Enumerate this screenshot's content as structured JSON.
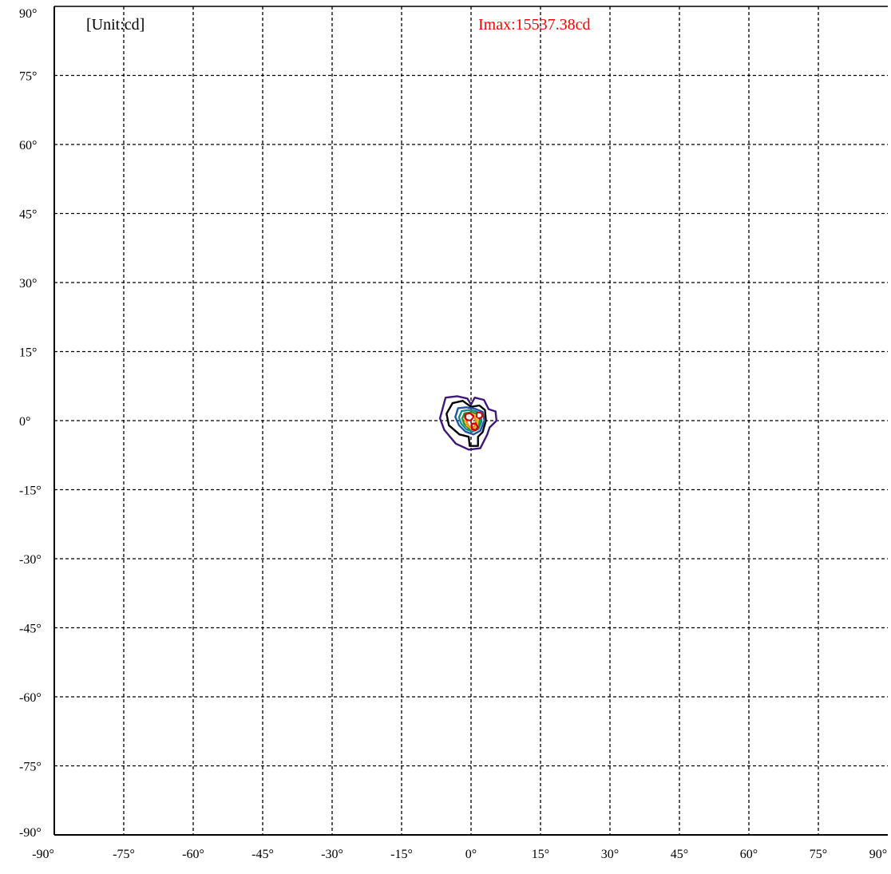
{
  "chart_data": {
    "type": "contour",
    "title": "",
    "unit_label": "[Unit:cd]",
    "imax_label": "Imax:15537.38cd",
    "imax_color": "#ff0000",
    "xlim": [
      -90,
      90
    ],
    "ylim": [
      -90,
      90
    ],
    "x_ticks": [
      -90,
      -75,
      -60,
      -45,
      -30,
      -15,
      0,
      15,
      30,
      45,
      60,
      75,
      90
    ],
    "y_ticks": [
      90,
      75,
      60,
      45,
      30,
      15,
      0,
      -15,
      -30,
      -45,
      -60,
      -75,
      -90
    ],
    "x_tick_labels": [
      "-90°",
      "-75°",
      "-60°",
      "-45°",
      "-30°",
      "-15°",
      "0°",
      "15°",
      "30°",
      "45°",
      "60°",
      "75°",
      "90°"
    ],
    "y_tick_labels": [
      "90°",
      "75°",
      "60°",
      "45°",
      "30°",
      "15°",
      "0°",
      "-15°",
      "-30°",
      "-45°",
      "-60°",
      "-75°",
      "-90°"
    ],
    "grid": true,
    "grid_style": "dashed",
    "contours": [
      {
        "color": "#3d1a78",
        "points": [
          [
            -5.5,
            5
          ],
          [
            -3,
            5.3
          ],
          [
            -0.8,
            4.8
          ],
          [
            0,
            3.5
          ],
          [
            0.8,
            5
          ],
          [
            2.8,
            4.5
          ],
          [
            3.8,
            2.5
          ],
          [
            5.3,
            2
          ],
          [
            5.5,
            0
          ],
          [
            4,
            -1.5
          ],
          [
            3.5,
            -3
          ],
          [
            2,
            -6
          ],
          [
            -0.5,
            -6.3
          ],
          [
            -3.3,
            -5
          ],
          [
            -5.8,
            -2
          ],
          [
            -6.7,
            0.5
          ]
        ]
      },
      {
        "color": "#000000",
        "points": [
          [
            -4,
            3.8
          ],
          [
            -1.8,
            4.3
          ],
          [
            0,
            3
          ],
          [
            1.8,
            3.3
          ],
          [
            3,
            2.3
          ],
          [
            3.2,
            0
          ],
          [
            2.5,
            -2.5
          ],
          [
            1.5,
            -3.5
          ],
          [
            1.5,
            -5.5
          ],
          [
            -0.3,
            -5.5
          ],
          [
            -0.5,
            -3.5
          ],
          [
            -2.5,
            -3
          ],
          [
            -4.8,
            -1
          ],
          [
            -5.3,
            1.5
          ]
        ]
      },
      {
        "color": "#1f55a6",
        "points": [
          [
            -2.8,
            2.7
          ],
          [
            -1,
            2.9
          ],
          [
            0.8,
            2.6
          ],
          [
            2.5,
            1.9
          ],
          [
            2.9,
            0
          ],
          [
            2,
            -2.2
          ],
          [
            0.5,
            -3
          ],
          [
            -1.2,
            -2.4
          ],
          [
            -2.6,
            -1
          ],
          [
            -3.4,
            0.8
          ]
        ]
      },
      {
        "color": "#1b8a8a",
        "points": [
          [
            -2,
            2.1
          ],
          [
            -0.5,
            2.3
          ],
          [
            0.9,
            2.1
          ],
          [
            2.1,
            1.3
          ],
          [
            2.3,
            -0.2
          ],
          [
            1.6,
            -1.8
          ],
          [
            0.3,
            -2.4
          ],
          [
            -1,
            -1.9
          ],
          [
            -2.1,
            -0.7
          ],
          [
            -2.6,
            0.7
          ]
        ]
      },
      {
        "color": "#2e8b2e",
        "points": [
          [
            -1.4,
            1.6
          ],
          [
            0,
            1.8
          ],
          [
            1.2,
            1.5
          ],
          [
            1.9,
            0.6
          ],
          [
            1.7,
            -1.2
          ],
          [
            0.7,
            -2
          ],
          [
            -0.5,
            -1.7
          ],
          [
            -1.5,
            -0.7
          ],
          [
            -1.9,
            0.5
          ]
        ]
      },
      {
        "color": "#e6c31a",
        "points": [
          [
            -0.9,
            1.3
          ],
          [
            0.1,
            1.5
          ],
          [
            1.2,
            1
          ],
          [
            1.4,
            -0.4
          ],
          [
            0.9,
            -1.6
          ],
          [
            0,
            -1.7
          ],
          [
            -0.9,
            -1
          ],
          [
            -1.3,
            0.2
          ]
        ]
      },
      {
        "color": "#f08a1a",
        "points": [
          [
            -0.7,
            1
          ],
          [
            0,
            1.1
          ],
          [
            0.8,
            0.7
          ],
          [
            1.1,
            -0.5
          ],
          [
            0.6,
            -1.4
          ],
          [
            -0.3,
            -1.4
          ],
          [
            -0.8,
            -0.7
          ],
          [
            -1,
            0.3
          ]
        ]
      },
      {
        "color": "#d40000",
        "points": [
          [
            -1.2,
            1.3
          ],
          [
            -0.2,
            1.6
          ],
          [
            0.5,
            1
          ],
          [
            0.1,
            0.2
          ],
          [
            -0.8,
            0.1
          ],
          [
            -1.3,
            0.6
          ]
        ]
      },
      {
        "color": "#d40000",
        "points": [
          [
            1.4,
            1.8
          ],
          [
            2.3,
            1.6
          ],
          [
            2.4,
            0.9
          ],
          [
            1.8,
            0.5
          ],
          [
            1.2,
            0.9
          ]
        ]
      },
      {
        "color": "#d40000",
        "points": [
          [
            0.1,
            -0.7
          ],
          [
            1,
            -0.6
          ],
          [
            1.5,
            -1.4
          ],
          [
            1,
            -2.1
          ],
          [
            0.2,
            -1.8
          ]
        ]
      },
      {
        "color": "#ffffff",
        "points": [
          [
            -0.8,
            1.1
          ],
          [
            -0.3,
            1.2
          ],
          [
            0.1,
            0.8
          ],
          [
            -0.3,
            0.4
          ],
          [
            -0.8,
            0.6
          ]
        ]
      },
      {
        "color": "#ffffff",
        "points": [
          [
            1.6,
            1.4
          ],
          [
            2,
            1.3
          ],
          [
            2,
            1
          ],
          [
            1.6,
            0.9
          ]
        ]
      }
    ]
  }
}
